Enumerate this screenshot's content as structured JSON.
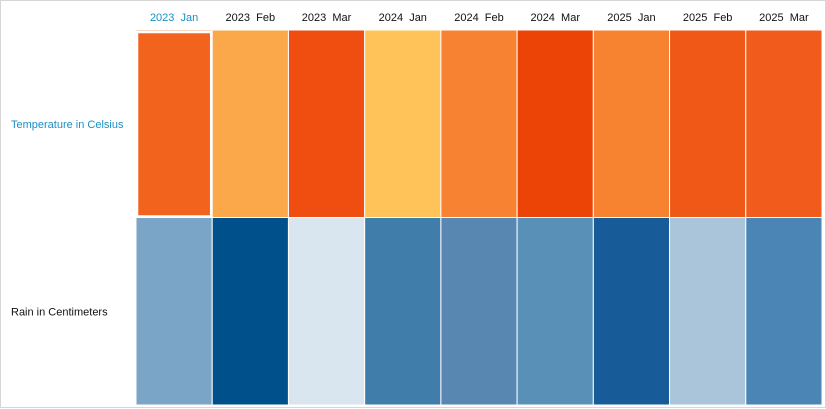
{
  "chart_data": {
    "type": "heatmap",
    "columns": [
      "2023  Jan",
      "2023  Feb",
      "2023  Mar",
      "2024  Jan",
      "2024  Feb",
      "2024  Mar",
      "2025  Jan",
      "2025  Feb",
      "2025  Mar"
    ],
    "rows": [
      {
        "name": "Temperature in Celsius",
        "colors": [
          "#F2641E",
          "#FBA84B",
          "#EF4E10",
          "#FFC35A",
          "#F78232",
          "#EC4407",
          "#F78230",
          "#F05818",
          "#F15B1B"
        ]
      },
      {
        "name": "Rain in Centimeters",
        "colors": [
          "#7AA5C6",
          "#00508C",
          "#D9E6F0",
          "#407DAB",
          "#5887B2",
          "#5990B8",
          "#175C98",
          "#AAC5DA",
          "#4A85B5"
        ]
      }
    ],
    "highlighted_column": 0,
    "highlighted_row": 0
  }
}
